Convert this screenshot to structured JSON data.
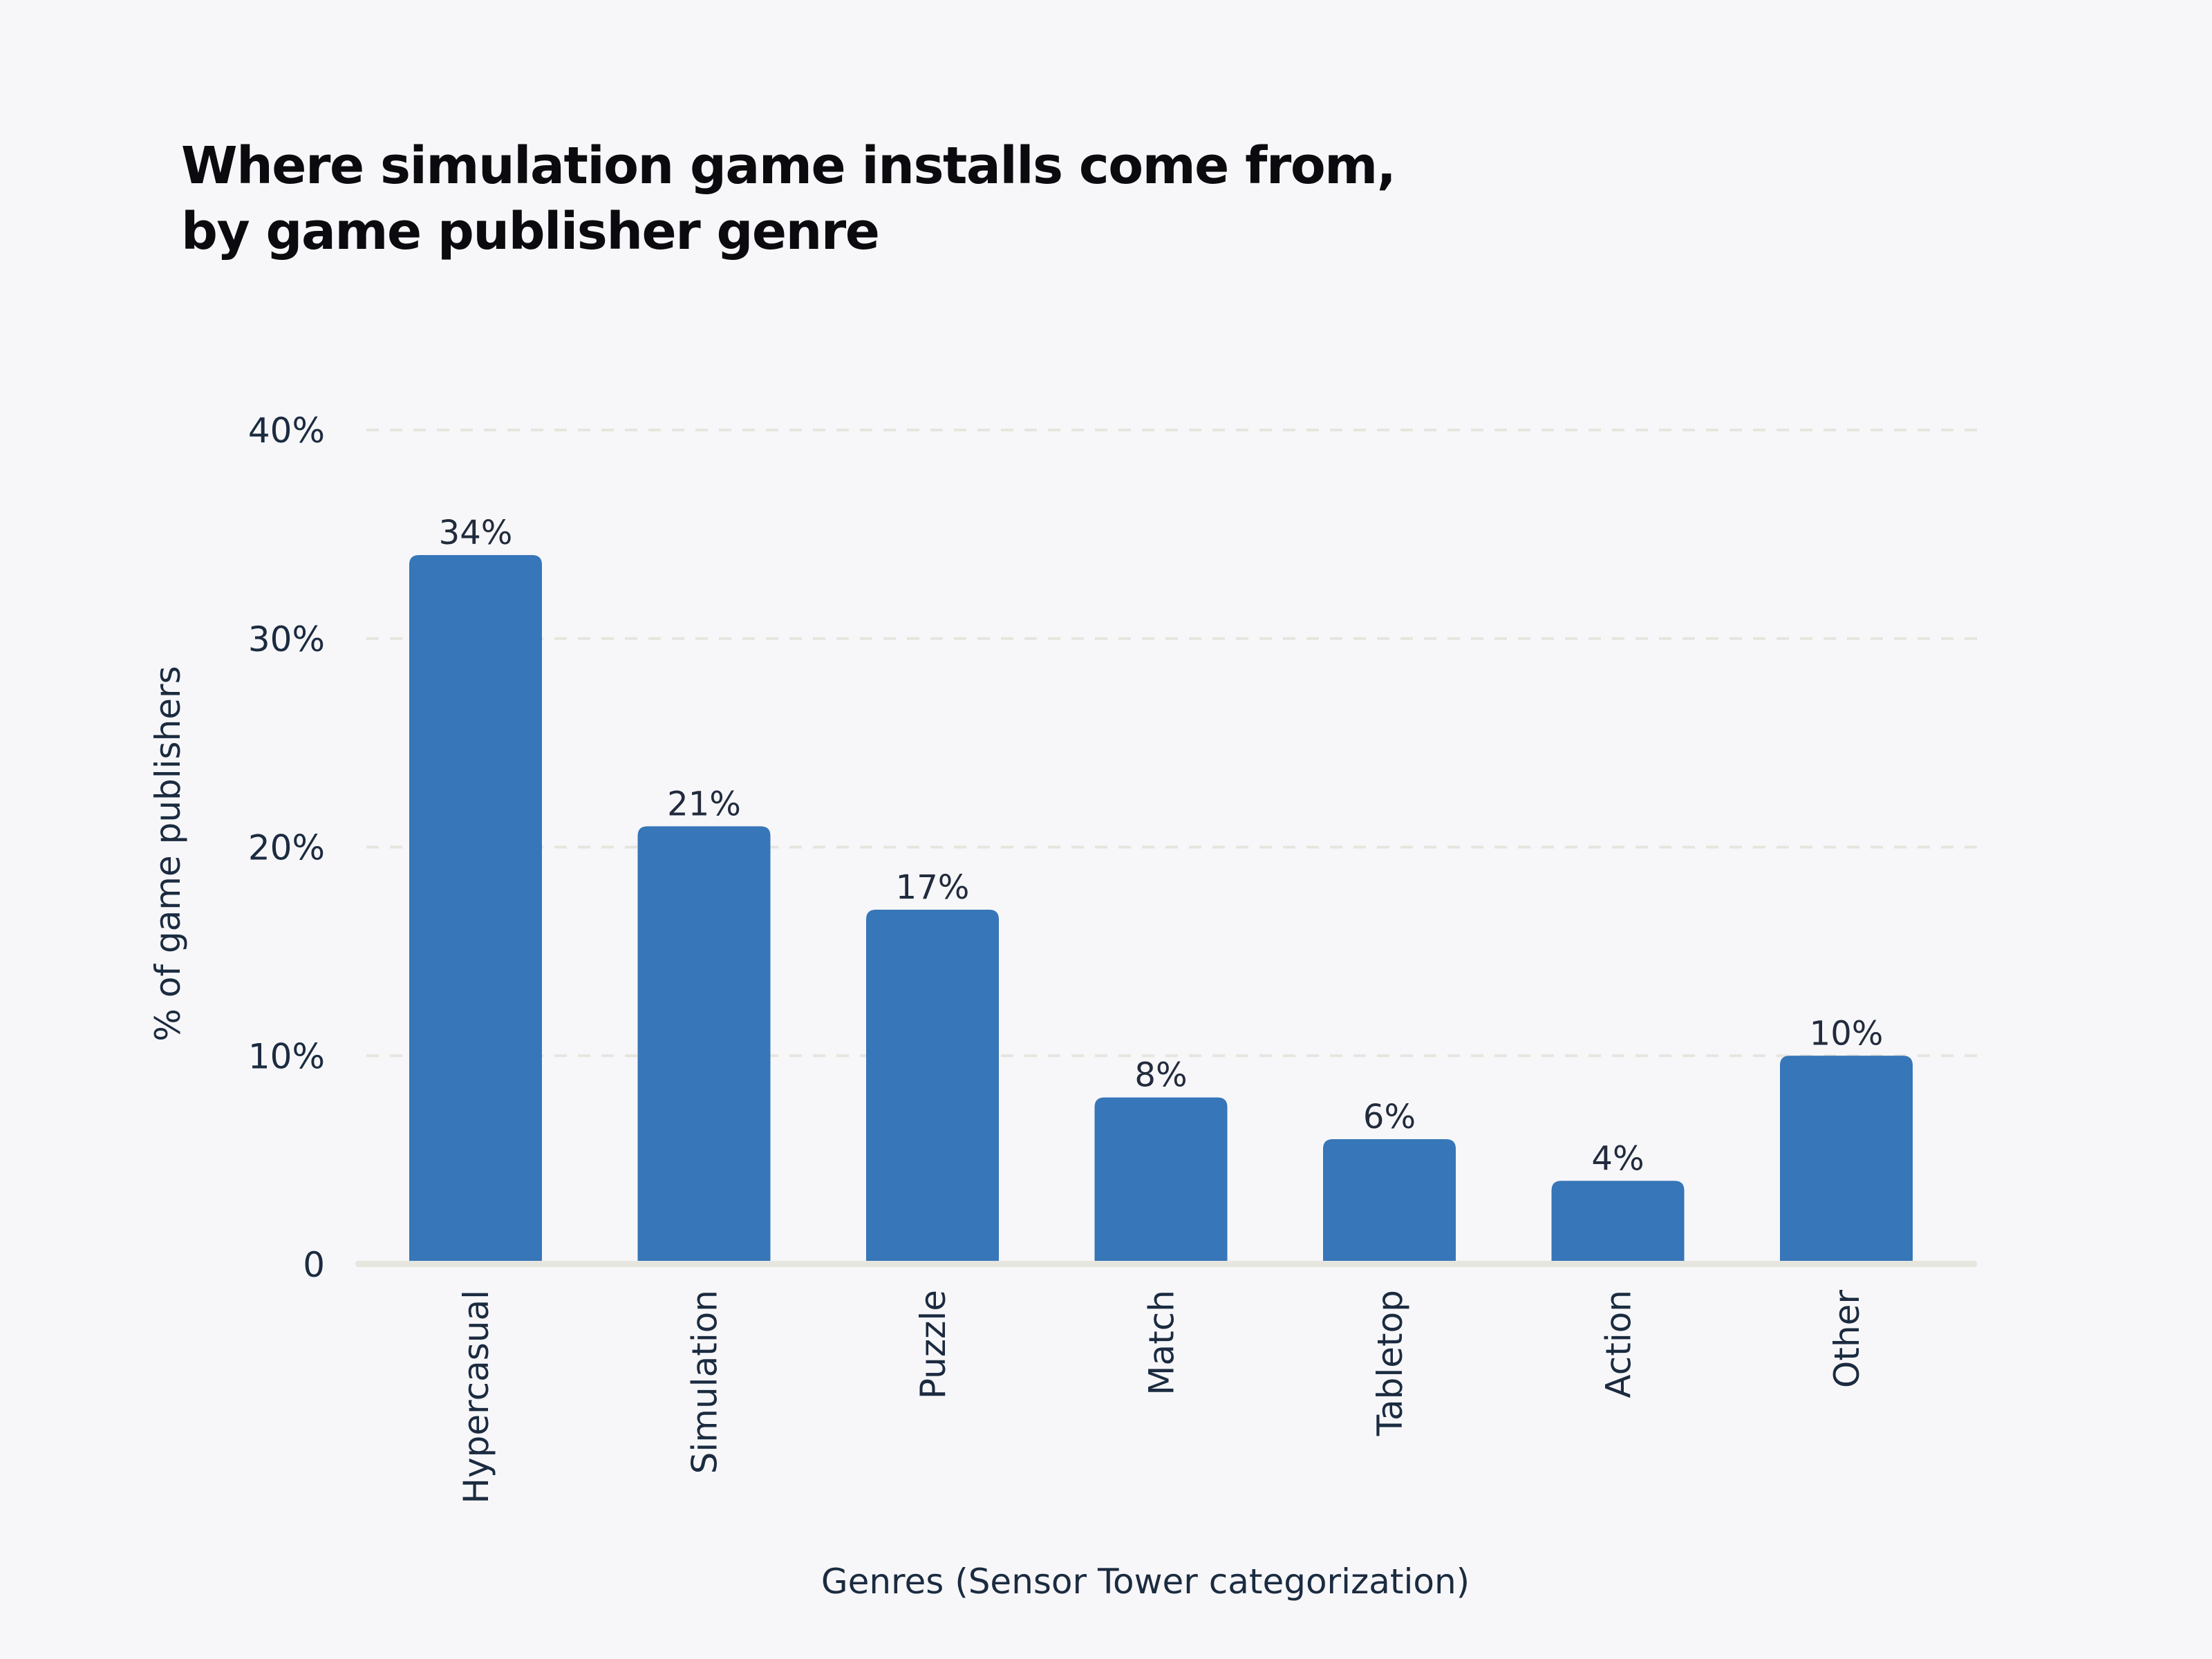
{
  "chart_data": {
    "type": "bar",
    "title": "Where simulation game installs come from,",
    "subtitle": "by game publisher genre",
    "xlabel": "Genres (Sensor Tower categorization)",
    "ylabel": "% of game publishers",
    "categories": [
      "Hypercasual",
      "Simulation",
      "Puzzle",
      "Match",
      "Tabletop",
      "Action",
      "Other"
    ],
    "values": [
      34,
      21,
      17,
      8,
      6,
      4,
      10
    ],
    "data_labels": [
      "34%",
      "21%",
      "17%",
      "8%",
      "6%",
      "4%",
      "10%"
    ],
    "ylim": [
      0,
      40
    ],
    "yticks": [
      0,
      10,
      20,
      30,
      40
    ],
    "ytick_labels": [
      "0",
      "10%",
      "20%",
      "30%",
      "40%"
    ],
    "grid": "horizontal dashed",
    "legend": "none",
    "colors": {
      "bar": "#3676b9",
      "text": "#1b2b40",
      "grid": "#e6e6df",
      "background": "#f7f7f9"
    }
  }
}
